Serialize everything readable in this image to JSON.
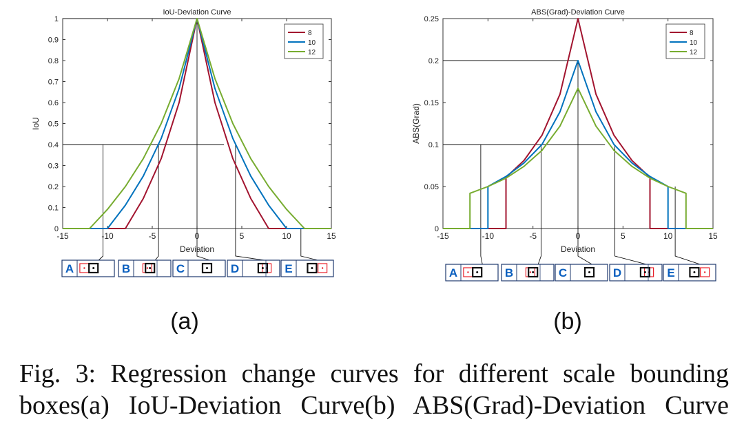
{
  "caption": {
    "line1": "Fig. 3: Regression change curves for different scale bounding",
    "line2": "boxes(a) IoU-Deviation Curve(b) ABS(Grad)-Deviation Curve"
  },
  "colors": {
    "s8": "#a2142f",
    "s10": "#0072bd",
    "s12": "#77ac30",
    "box_label": "#0a5fbf",
    "box_border": "#1f3a6e",
    "red_box": "#e8202a"
  },
  "chart_data": [
    {
      "type": "line",
      "panel_label": "(a)",
      "title": "IoU-Deviation Curve",
      "xlabel": "Deviation",
      "ylabel": "IoU",
      "xlim": [
        -15,
        15
      ],
      "ylim": [
        0,
        1
      ],
      "xticks": [
        -15,
        -10,
        -5,
        0,
        5,
        10,
        15
      ],
      "yticks": [
        0,
        0.1,
        0.2,
        0.3,
        0.4,
        0.5,
        0.6,
        0.7,
        0.8,
        0.9,
        1
      ],
      "legend": "top-right",
      "series": [
        {
          "name": "8",
          "color": "#a2142f",
          "x": [
            -15,
            -8,
            -6,
            -4,
            -2,
            0,
            2,
            4,
            6,
            8,
            15
          ],
          "y": [
            0,
            0,
            0.143,
            0.333,
            0.6,
            1,
            0.6,
            0.333,
            0.143,
            0,
            0
          ]
        },
        {
          "name": "10",
          "color": "#0072bd",
          "x": [
            -15,
            -10,
            -8,
            -6,
            -4,
            -2,
            0,
            2,
            4,
            6,
            8,
            10,
            15
          ],
          "y": [
            0,
            0,
            0.111,
            0.25,
            0.429,
            0.667,
            1,
            0.667,
            0.429,
            0.25,
            0.111,
            0,
            0
          ]
        },
        {
          "name": "12",
          "color": "#77ac30",
          "x": [
            -15,
            -12,
            -10,
            -8,
            -6,
            -4,
            -2,
            0,
            2,
            4,
            6,
            8,
            10,
            12,
            15
          ],
          "y": [
            0,
            0,
            0.091,
            0.2,
            0.333,
            0.5,
            0.714,
            1,
            0.714,
            0.5,
            0.333,
            0.2,
            0.091,
            0,
            0
          ]
        }
      ],
      "reference_lines": {
        "horizontal": [
          1,
          0.4
        ],
        "vertical": [
          -10.5,
          -4.3,
          0,
          4.3,
          11.6
        ]
      }
    },
    {
      "type": "line",
      "panel_label": "(b)",
      "title": "ABS(Grad)-Deviation Curve",
      "xlabel": "Deviation",
      "ylabel": "ABS(Grad)",
      "xlim": [
        -15,
        15
      ],
      "ylim": [
        0,
        0.25
      ],
      "xticks": [
        -15,
        -10,
        -5,
        0,
        5,
        10,
        15
      ],
      "yticks": [
        0,
        0.05,
        0.1,
        0.15,
        0.2,
        0.25
      ],
      "legend": "top-right",
      "series": [
        {
          "name": "8",
          "color": "#a2142f",
          "x": [
            -15,
            -8,
            -8,
            -6,
            -4,
            -2,
            0,
            2,
            4,
            6,
            8,
            8,
            15
          ],
          "y": [
            0,
            0,
            0.061,
            0.081,
            0.111,
            0.16,
            0.25,
            0.16,
            0.111,
            0.081,
            0.061,
            0,
            0
          ]
        },
        {
          "name": "10",
          "color": "#0072bd",
          "x": [
            -15,
            -10,
            -10,
            -8,
            -6,
            -4,
            -2,
            0,
            2,
            4,
            6,
            8,
            10,
            10,
            15
          ],
          "y": [
            0,
            0,
            0.05,
            0.062,
            0.078,
            0.1,
            0.139,
            0.2,
            0.139,
            0.1,
            0.078,
            0.062,
            0.05,
            0,
            0
          ]
        },
        {
          "name": "12",
          "color": "#77ac30",
          "x": [
            -15,
            -12,
            -12,
            -10,
            -8,
            -6,
            -4,
            -2,
            0,
            2,
            4,
            6,
            8,
            10,
            12,
            12,
            15
          ],
          "y": [
            0,
            0,
            0.042,
            0.05,
            0.06,
            0.074,
            0.093,
            0.122,
            0.167,
            0.122,
            0.093,
            0.074,
            0.06,
            0.05,
            0.042,
            0,
            0
          ]
        }
      ],
      "reference_lines": {
        "horizontal": [
          0.2,
          0.1
        ],
        "vertical": [
          -10.8,
          -4.1,
          0,
          4.1,
          10.8
        ]
      }
    }
  ],
  "box_strips": [
    {
      "letters": [
        "A",
        "B",
        "C",
        "D",
        "E"
      ]
    },
    {
      "letters": [
        "A",
        "B",
        "C",
        "D",
        "E"
      ]
    }
  ]
}
